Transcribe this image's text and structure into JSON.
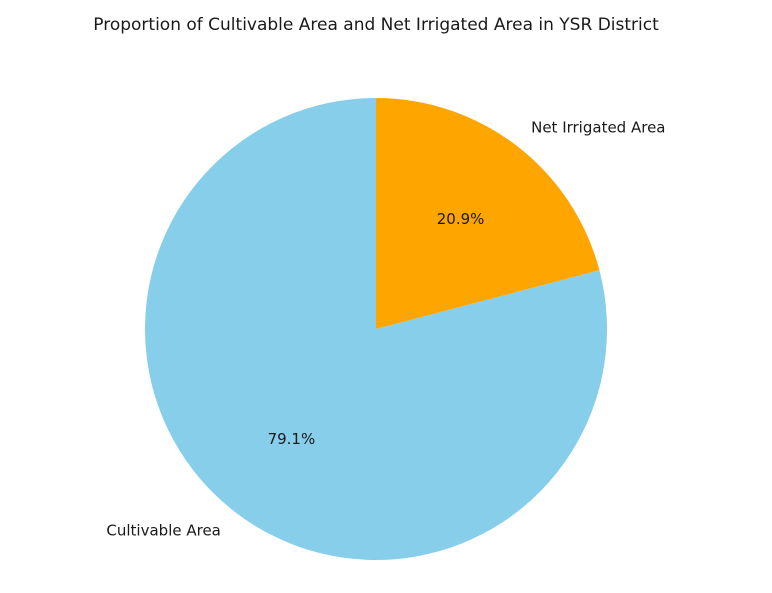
{
  "chart_data": {
    "type": "pie",
    "title": "Proportion of Cultivable Area and Net Irrigated Area in YSR District",
    "start_angle_deg": 90,
    "direction": "counterclockwise",
    "slices": [
      {
        "label": "Cultivable Area",
        "value": 79.1,
        "pct_label": "79.1%",
        "color": "#87ceeb"
      },
      {
        "label": "Net Irrigated Area",
        "value": 20.9,
        "pct_label": "20.9%",
        "color": "#ffa500"
      }
    ],
    "legend": "none"
  }
}
